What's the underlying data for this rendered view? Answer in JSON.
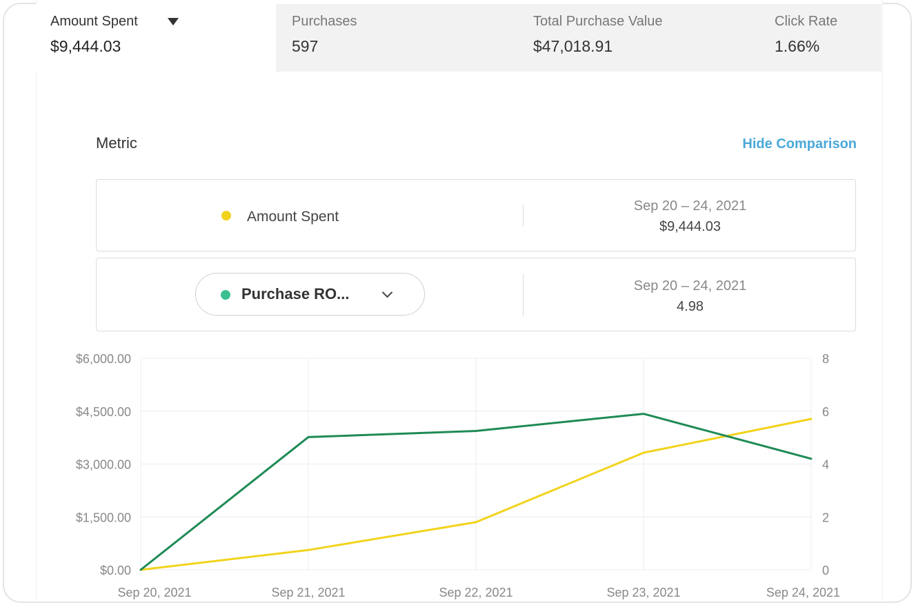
{
  "tabs": [
    {
      "label": "Amount Spent",
      "value": "$9,444.03",
      "active": true
    },
    {
      "label": "Purchases",
      "value": "597",
      "active": false
    },
    {
      "label": "Total Purchase Value",
      "value": "$47,018.91",
      "active": false
    },
    {
      "label": "Click Rate",
      "value": "1.66%",
      "active": false
    }
  ],
  "metric_section": {
    "title": "Metric",
    "hide_comparison": "Hide Comparison"
  },
  "metric_rows": [
    {
      "label": "Amount Spent",
      "date_range": "Sep 20 – 24, 2021",
      "value": "$9,444.03",
      "color": "#f2d31b"
    },
    {
      "label": "Purchase RO...",
      "date_range": "Sep 20 – 24, 2021",
      "value": "4.98",
      "color": "#3cc090"
    }
  ],
  "colors": {
    "amount_spent_line": "#f2d31b",
    "purchase_roas_line": "#1e8a55",
    "link": "#4aa8d8"
  },
  "chart_data": {
    "type": "line",
    "x": [
      "Sep 20, 2021",
      "Sep 21, 2021",
      "Sep 22, 2021",
      "Sep 23, 2021",
      "Sep 24, 2021"
    ],
    "series": [
      {
        "name": "Amount Spent",
        "axis": "left",
        "values": [
          0,
          560,
          1350,
          3320,
          4280
        ]
      },
      {
        "name": "Purchase RO...",
        "axis": "right",
        "values": [
          0,
          5.02,
          5.25,
          5.9,
          4.2
        ]
      }
    ],
    "y_left": {
      "ticks": [
        "$0.00",
        "$1,500.00",
        "$3,000.00",
        "$4,500.00",
        "$6,000.00"
      ],
      "range": [
        0,
        6000
      ]
    },
    "y_right": {
      "ticks": [
        "0",
        "2",
        "4",
        "6",
        "8"
      ],
      "range": [
        0,
        8
      ]
    },
    "grid": true
  }
}
